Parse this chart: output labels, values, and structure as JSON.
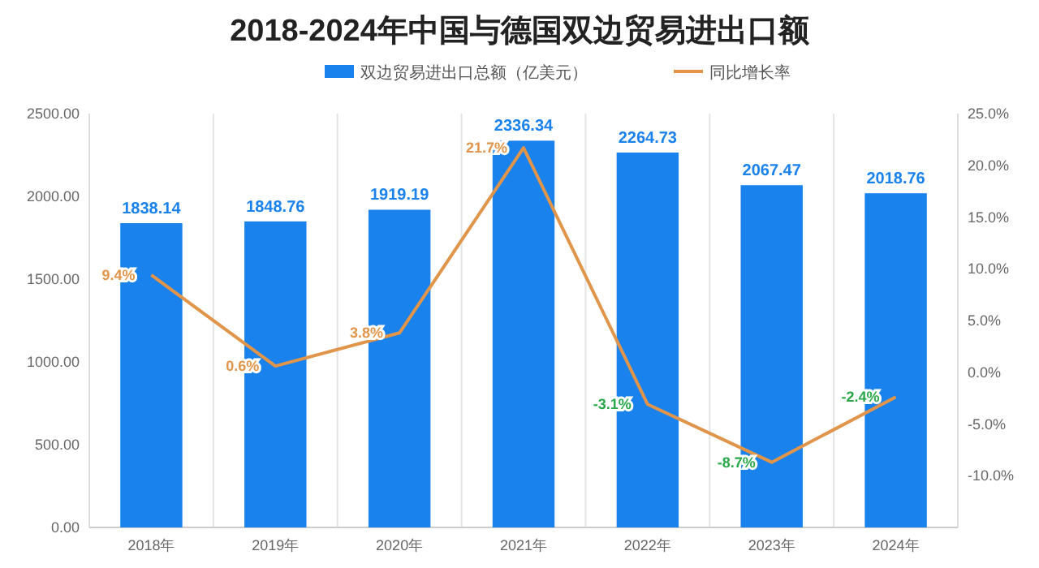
{
  "chart_data": {
    "type": "bar",
    "title": "2018-2024年中国与德国双边贸易进出口额",
    "categories": [
      "2018年",
      "2019年",
      "2020年",
      "2021年",
      "2022年",
      "2023年",
      "2024年"
    ],
    "series": [
      {
        "name": "双边贸易进出口总额（亿美元）",
        "color": "#1a82ec",
        "values": [
          1838.14,
          1848.76,
          1919.19,
          2336.34,
          2264.73,
          2067.47,
          2018.76
        ],
        "value_labels": [
          "1838.14",
          "1848.76",
          "1919.19",
          "2336.34",
          "2264.73",
          "2067.47",
          "2018.76"
        ]
      },
      {
        "name": "同比增长率",
        "type": "line",
        "axis": "y2",
        "color": "#e0954a",
        "values": [
          9.4,
          0.6,
          3.8,
          21.7,
          -3.1,
          -8.7,
          -2.4
        ],
        "value_labels": [
          "9.4%",
          "0.6%",
          "3.8%",
          "21.7%",
          "-3.1%",
          "-8.7%",
          "-2.4%"
        ]
      }
    ],
    "ylim": [
      0,
      2500
    ],
    "yticks": [
      {
        "value": 0,
        "label": "0.00"
      },
      {
        "value": 500,
        "label": "500.00"
      },
      {
        "value": 1000,
        "label": "1000.00"
      },
      {
        "value": 1500,
        "label": "1500.00"
      },
      {
        "value": 2000,
        "label": "2000.00"
      },
      {
        "value": 2500,
        "label": "2500.00"
      }
    ],
    "y2lim": [
      -15,
      25
    ],
    "y2ticks": [
      {
        "value": -10,
        "label": "-10.0%"
      },
      {
        "value": -5,
        "label": "-5.0%"
      },
      {
        "value": 0,
        "label": "0.0%"
      },
      {
        "value": 5,
        "label": "5.0%"
      },
      {
        "value": 10,
        "label": "10.0%"
      },
      {
        "value": 15,
        "label": "15.0%"
      },
      {
        "value": 20,
        "label": "20.0%"
      },
      {
        "value": 25,
        "label": "25.0%"
      }
    ],
    "grid": "x",
    "legend": "top",
    "marker": "none",
    "line_style": "solid"
  }
}
